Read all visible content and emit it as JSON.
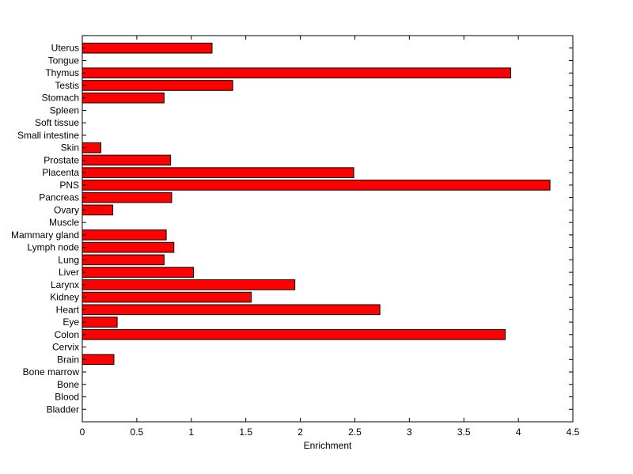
{
  "chart_data": {
    "type": "bar",
    "orientation": "horizontal",
    "xlabel": "Enrichment",
    "ylabel": "",
    "title": "",
    "xlim": [
      0,
      4.5
    ],
    "xticks": [
      "0",
      "0.5",
      "1",
      "1.5",
      "2",
      "2.5",
      "3",
      "3.5",
      "4",
      "4.5"
    ],
    "grid": false,
    "bar_color": "#ff0000",
    "bar_edge_color": "#000000",
    "categories": [
      "Uterus",
      "Tongue",
      "Thymus",
      "Testis",
      "Stomach",
      "Spleen",
      "Soft tissue",
      "Small intestine",
      "Skin",
      "Prostate",
      "Placenta",
      "PNS",
      "Pancreas",
      "Ovary",
      "Muscle",
      "Mammary gland",
      "Lymph node",
      "Lung",
      "Liver",
      "Larynx",
      "Kidney",
      "Heart",
      "Eye",
      "Colon",
      "Cervix",
      "Brain",
      "Bone marrow",
      "Bone",
      "Blood",
      "Bladder"
    ],
    "values": [
      1.19,
      0,
      3.93,
      1.38,
      0.75,
      0,
      0,
      0,
      0.17,
      0.81,
      2.49,
      4.29,
      0.82,
      0.28,
      0,
      0.77,
      0.84,
      0.75,
      1.02,
      1.95,
      1.55,
      2.73,
      0.32,
      3.88,
      0,
      0.29,
      0,
      0,
      0,
      0
    ]
  }
}
